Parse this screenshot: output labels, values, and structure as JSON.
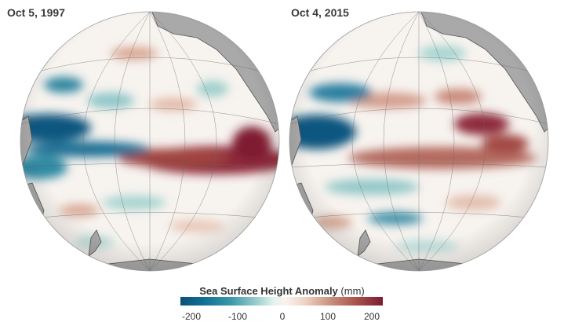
{
  "panels": [
    {
      "date": "Oct 5, 1997"
    },
    {
      "date": "Oct 4, 2015"
    }
  ],
  "legend": {
    "title": "Sea Surface Height Anomaly",
    "unit": "(mm)",
    "ticks": [
      "-200",
      "-100",
      "0",
      "100",
      "200"
    ],
    "colors": {
      "low": "#0b4f78",
      "mid": "#fbf3ee",
      "high": "#7b1d31"
    }
  }
}
